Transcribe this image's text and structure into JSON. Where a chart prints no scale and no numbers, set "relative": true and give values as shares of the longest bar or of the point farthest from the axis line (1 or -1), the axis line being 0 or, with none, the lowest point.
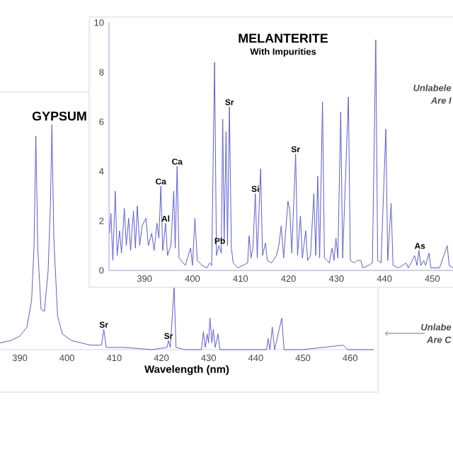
{
  "chart_data": [
    {
      "type": "line",
      "title": "MELANTERITE",
      "subtitle": "With Impurities",
      "color": "#5c5cd6",
      "x": [
        382.7,
        383.0,
        383.4,
        383.9,
        384.3,
        384.8,
        385.2,
        385.8,
        386.2,
        386.7,
        387.1,
        387.7,
        388.1,
        388.5,
        389.0,
        389.5,
        390.3,
        390.8,
        391.5,
        392.0,
        392.6,
        393.0,
        393.4,
        393.8,
        394.4,
        394.8,
        395.5,
        396.1,
        396.4,
        396.8,
        397.2,
        398.5,
        399.6,
        400.0,
        400.5,
        401.0,
        402.0,
        403.0,
        403.6,
        404.0,
        404.6,
        405.0,
        405.5,
        406.0,
        406.3,
        406.6,
        407.0,
        407.3,
        407.7,
        408.1,
        408.5,
        409.5,
        410.5,
        411.5,
        411.8,
        412.2,
        412.6,
        413.1,
        413.5,
        414.2,
        414.6,
        415.2,
        415.6,
        416.5,
        417.5,
        418.0,
        418.5,
        419.0,
        419.9,
        420.3,
        420.7,
        421.5,
        421.9,
        422.5,
        422.9,
        423.6,
        424.0,
        424.6,
        425.3,
        425.7,
        426.1,
        426.5,
        427.1,
        427.5,
        428.5,
        429.1,
        429.5,
        429.9,
        430.3,
        430.9,
        431.3,
        432.5,
        432.9,
        433.8,
        434.3,
        435.1,
        435.5,
        436.7,
        437.5,
        438.2,
        438.6,
        439.3,
        440.3,
        440.7,
        441.4,
        441.8,
        443.0,
        444.5,
        445.0,
        445.8,
        446.3,
        446.8,
        447.2,
        447.6,
        448.2,
        448.6,
        449.3,
        449.7,
        451.5,
        453.1,
        453.5,
        454.3
      ],
      "values": [
        1.5,
        2.3,
        0.4,
        3.2,
        0.6,
        1.6,
        0.7,
        2.5,
        1.0,
        2.1,
        0.8,
        2.4,
        0.9,
        2.6,
        1.0,
        1.8,
        2.1,
        1.0,
        1.5,
        0.8,
        1.9,
        1.3,
        3.4,
        0.8,
        1.9,
        0.6,
        1.0,
        3.2,
        0.9,
        4.2,
        0.5,
        0.2,
        0.9,
        0.2,
        2.1,
        0.4,
        0.2,
        0.1,
        0.3,
        0.2,
        8.4,
        0.6,
        1.0,
        0.7,
        6.1,
        1.2,
        5.6,
        1.0,
        6.6,
        0.9,
        0.3,
        0.1,
        0.2,
        0.3,
        1.4,
        0.5,
        0.9,
        3.1,
        0.5,
        4.1,
        0.6,
        1.1,
        0.4,
        0.3,
        0.6,
        1.0,
        1.8,
        0.5,
        2.8,
        2.4,
        0.7,
        4.7,
        0.6,
        2.2,
        0.5,
        1.6,
        0.4,
        0.6,
        3.1,
        0.6,
        3.8,
        0.5,
        6.8,
        0.5,
        0.3,
        0.9,
        0.4,
        1.3,
        0.5,
        6.4,
        0.5,
        7.0,
        0.4,
        0.3,
        0.4,
        0.4,
        0.1,
        0.2,
        0.3,
        9.3,
        0.4,
        0.3,
        5.7,
        0.4,
        2.7,
        0.2,
        0.1,
        0.3,
        0.1,
        0.4,
        0.6,
        0.2,
        0.8,
        0.2,
        0.4,
        0.2,
        0.7,
        0.1,
        0.1,
        1.0,
        0.2,
        0.1
      ],
      "xlim": [
        382.6,
        454.3
      ],
      "xticks": [
        390,
        400,
        410,
        420,
        430,
        440,
        450
      ],
      "ylim": [
        0,
        10
      ],
      "yticks": [
        0,
        2,
        4,
        6,
        8,
        10
      ],
      "annotations": [
        {
          "text": "Ca",
          "x": 393.4,
          "y": 3.4
        },
        {
          "text": "Al",
          "x": 394.4,
          "y": 1.9
        },
        {
          "text": "Ca",
          "x": 396.8,
          "y": 4.2
        },
        {
          "text": "Pb",
          "x": 405.7,
          "y": 1.0
        },
        {
          "text": "Sr",
          "x": 407.7,
          "y": 6.6
        },
        {
          "text": "Si",
          "x": 413.1,
          "y": 3.1
        },
        {
          "text": "Sr",
          "x": 421.5,
          "y": 4.7
        },
        {
          "text": "As",
          "x": 447.4,
          "y": 0.8
        },
        "Unlabele",
        "Are I"
      ]
    },
    {
      "type": "line",
      "title": "GYPSUM",
      "xlabel": "Wavelength (nm)",
      "color": "#5c5cd6",
      "relative": true,
      "tick_labels": "x",
      "x": [
        385.8,
        388,
        390,
        391.5,
        392.5,
        393.0,
        393.4,
        393.8,
        394.5,
        395.2,
        396.0,
        396.5,
        396.8,
        397.2,
        398,
        399,
        401,
        405,
        407.3,
        407.8,
        408.3,
        412,
        418,
        421.2,
        421.5,
        421.9,
        422.7,
        423.1,
        425,
        428.5,
        428.9,
        429.3,
        429.7,
        430.0,
        430.3,
        430.7,
        431.0,
        431.4,
        432.0,
        432.4,
        436,
        442.3,
        442.6,
        443.0,
        443.5,
        444.0,
        445.5,
        446,
        450,
        458.5,
        459.5,
        465
      ],
      "values": [
        0.03,
        0.04,
        0.06,
        0.1,
        0.22,
        0.45,
        0.95,
        0.45,
        0.18,
        0.17,
        0.35,
        0.65,
        1.0,
        0.5,
        0.15,
        0.07,
        0.04,
        0.02,
        0.02,
        0.09,
        0.01,
        0.01,
        0.0,
        0.01,
        0.04,
        0.01,
        0.28,
        0.01,
        0.0,
        0.0,
        0.08,
        0.01,
        0.07,
        0.03,
        0.14,
        0.03,
        0.09,
        0.01,
        0.07,
        0.0,
        0.0,
        0.0,
        0.05,
        0.0,
        0.1,
        0.0,
        0.14,
        0.0,
        0.0,
        0.02,
        0.0,
        0.0
      ],
      "xlim": [
        385.8,
        465
      ],
      "xticks": [
        390,
        400,
        410,
        420,
        430,
        440,
        450,
        460
      ],
      "annotations": [
        {
          "text": "Sr",
          "x": 407.8,
          "y": 0.09
        },
        {
          "text": "Sr",
          "x": 421.5,
          "y": 0.04
        },
        "Unlabe",
        "Are C"
      ]
    }
  ]
}
